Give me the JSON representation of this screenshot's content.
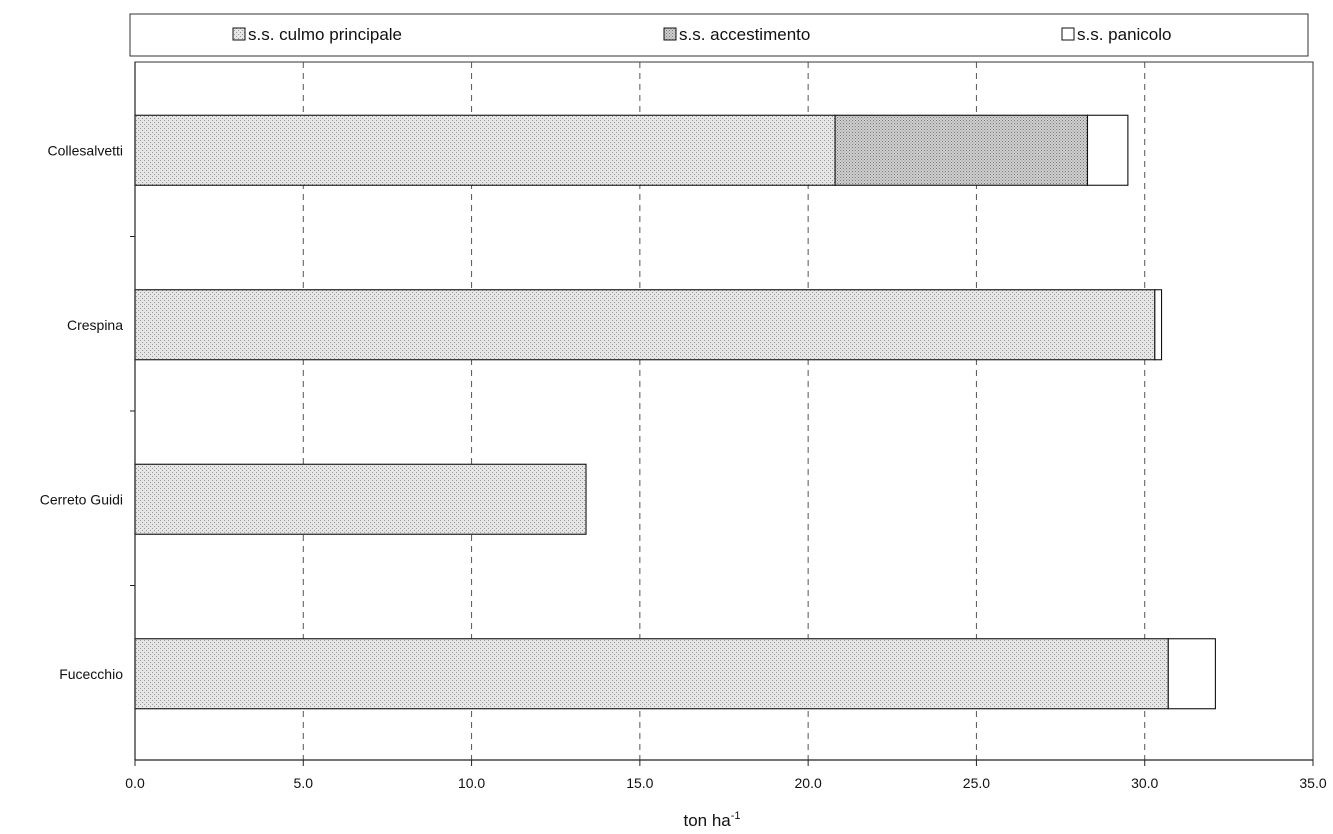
{
  "chart_data": {
    "type": "bar",
    "orientation": "horizontal",
    "stacked": true,
    "categories": [
      "Collesalvetti",
      "Crespina",
      "Cerreto Guidi",
      "Fucecchio"
    ],
    "series": [
      {
        "name": "s.s. culmo principale",
        "values": [
          20.8,
          30.3,
          13.4,
          30.7
        ],
        "color": "#d9d9d9"
      },
      {
        "name": "s.s. accestimento",
        "values": [
          7.5,
          0.0,
          0.0,
          0.0
        ],
        "color": "#bcbcbc"
      },
      {
        "name": "s.s. panicolo",
        "values": [
          1.2,
          0.2,
          0.0,
          1.4
        ],
        "color": "#ffffff"
      }
    ],
    "xlim": [
      0,
      35
    ],
    "xticks": [
      0,
      5,
      10,
      15,
      20,
      25,
      30,
      35
    ],
    "xtick_labels": [
      "0.0",
      "5.0",
      "10.0",
      "15.0",
      "20.0",
      "25.0",
      "30.0",
      "35.0"
    ],
    "xlabel": "ton ha",
    "xlabel_superscript": "-1",
    "grid": "vertical-dashed",
    "legend_position": "top"
  }
}
